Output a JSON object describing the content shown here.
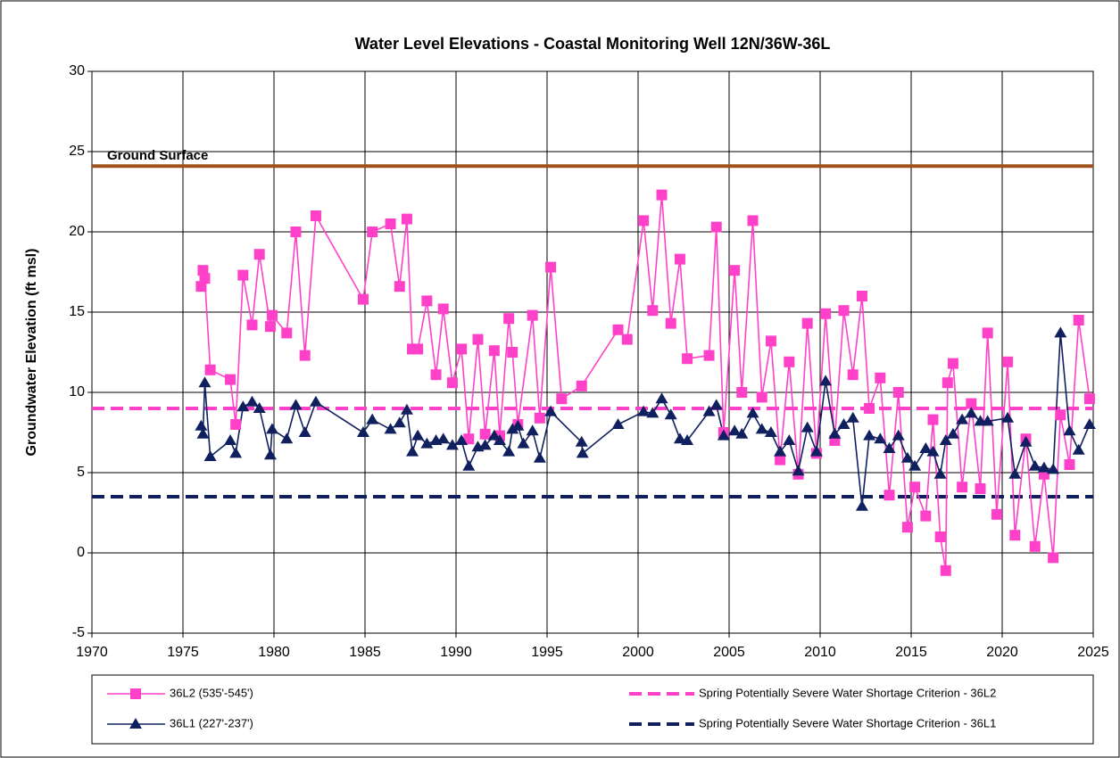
{
  "chart_data": {
    "type": "line",
    "title": "Water Level Elevations - Coastal Monitoring Well 12N/36W-36L",
    "y_label": "Groundwater Elevation (ft msl)",
    "xlim": [
      1970,
      2025
    ],
    "xticks": [
      1970,
      1975,
      1980,
      1985,
      1990,
      1995,
      2000,
      2005,
      2010,
      2015,
      2020,
      2025
    ],
    "ylim": [
      -5,
      30
    ],
    "yticks": [
      -5,
      0,
      5,
      10,
      15,
      20,
      25,
      30
    ],
    "grid": true,
    "legend": "bottom",
    "series": [
      {
        "name": "36L2 (535'-545')",
        "color": "#ff40c8",
        "marker": "square",
        "x": [
          1976.0,
          1976.1,
          1976.2,
          1976.5,
          1977.6,
          1977.9,
          1978.3,
          1978.8,
          1979.2,
          1979.8,
          1979.9,
          1980.7,
          1981.2,
          1981.7,
          1982.3,
          1984.9,
          1985.4,
          1986.4,
          1986.9,
          1987.3,
          1987.6,
          1987.9,
          1988.4,
          1988.9,
          1989.3,
          1989.8,
          1990.3,
          1990.7,
          1991.2,
          1991.6,
          1992.1,
          1992.4,
          1992.9,
          1993.1,
          1993.4,
          1994.2,
          1994.6,
          1995.2,
          1995.8,
          1996.9,
          1998.9,
          1999.4,
          2000.3,
          2000.8,
          2001.3,
          2001.8,
          2002.3,
          2002.7,
          2003.9,
          2004.3,
          2004.7,
          2005.3,
          2005.7,
          2006.3,
          2006.8,
          2007.3,
          2007.8,
          2008.3,
          2008.8,
          2009.3,
          2009.8,
          2010.3,
          2010.8,
          2011.3,
          2011.8,
          2012.3,
          2012.7,
          2013.3,
          2013.8,
          2014.3,
          2014.8,
          2015.2,
          2015.8,
          2016.2,
          2016.6,
          2016.9,
          2017.0,
          2017.3,
          2017.8,
          2018.3,
          2018.8,
          2019.2,
          2019.7,
          2020.3,
          2020.7,
          2021.3,
          2021.8,
          2022.3,
          2022.8,
          2023.2,
          2023.7,
          2024.2,
          2024.8
        ],
        "values": [
          16.6,
          17.6,
          17.1,
          11.4,
          10.8,
          8.0,
          17.3,
          14.2,
          18.6,
          14.1,
          14.8,
          13.7,
          20.0,
          12.3,
          21.0,
          15.8,
          20.0,
          20.5,
          16.6,
          20.8,
          12.7,
          12.7,
          15.7,
          11.1,
          15.2,
          10.6,
          12.7,
          7.1,
          13.3,
          7.4,
          12.6,
          7.3,
          14.6,
          12.5,
          8.0,
          14.8,
          8.4,
          17.8,
          9.6,
          10.4,
          13.9,
          13.3,
          20.7,
          15.1,
          22.3,
          14.3,
          18.3,
          12.1,
          12.3,
          20.3,
          7.5,
          17.6,
          10.0,
          20.7,
          9.7,
          13.2,
          5.8,
          11.9,
          4.9,
          14.3,
          6.2,
          14.9,
          7.0,
          15.1,
          11.1,
          16.0,
          9.0,
          10.9,
          3.6,
          10.0,
          1.6,
          4.1,
          2.3,
          8.3,
          1.0,
          -1.1,
          10.6,
          11.8,
          4.1,
          9.3,
          4.0,
          13.7,
          2.4,
          11.9,
          1.1,
          7.1,
          0.4,
          4.9,
          -0.3,
          8.6,
          5.5,
          14.5,
          9.6
        ]
      },
      {
        "name": "36L1 (227'-237')",
        "color": "#10205f",
        "marker": "triangle",
        "x": [
          1976.0,
          1976.1,
          1976.2,
          1976.5,
          1977.6,
          1977.9,
          1978.3,
          1978.8,
          1979.2,
          1979.8,
          1979.9,
          1980.7,
          1981.2,
          1981.7,
          1982.3,
          1984.9,
          1985.4,
          1986.4,
          1986.9,
          1987.3,
          1987.6,
          1987.9,
          1988.4,
          1988.9,
          1989.3,
          1989.8,
          1990.3,
          1990.7,
          1991.2,
          1991.6,
          1992.1,
          1992.4,
          1992.9,
          1993.1,
          1993.4,
          1993.7,
          1994.2,
          1994.6,
          1995.2,
          1996.9,
          1996.95,
          1998.9,
          2000.3,
          2000.8,
          2001.3,
          2001.8,
          2002.3,
          2002.7,
          2003.9,
          2004.3,
          2004.7,
          2005.3,
          2005.7,
          2006.3,
          2006.8,
          2007.3,
          2007.8,
          2008.3,
          2008.8,
          2009.3,
          2009.8,
          2010.3,
          2010.8,
          2011.3,
          2011.8,
          2012.3,
          2012.7,
          2013.3,
          2013.8,
          2014.3,
          2014.8,
          2015.2,
          2015.8,
          2016.2,
          2016.6,
          2016.9,
          2017.3,
          2017.8,
          2018.3,
          2018.8,
          2019.2,
          2020.3,
          2020.7,
          2021.3,
          2021.8,
          2022.3,
          2022.8,
          2023.2,
          2023.7,
          2024.2,
          2024.8
        ],
        "values": [
          7.9,
          7.4,
          10.6,
          6.0,
          7.0,
          6.2,
          9.1,
          9.4,
          9.0,
          6.1,
          7.7,
          7.1,
          9.2,
          7.5,
          9.4,
          7.5,
          8.3,
          7.7,
          8.1,
          8.9,
          6.3,
          7.3,
          6.8,
          7.0,
          7.1,
          6.7,
          7.0,
          5.4,
          6.6,
          6.7,
          7.3,
          7.0,
          6.3,
          7.7,
          7.9,
          6.8,
          7.6,
          5.9,
          8.8,
          6.9,
          6.2,
          8.0,
          8.8,
          8.7,
          9.6,
          8.6,
          7.1,
          7.0,
          8.8,
          9.2,
          7.3,
          7.6,
          7.4,
          8.7,
          7.7,
          7.5,
          6.3,
          7.0,
          5.1,
          7.8,
          6.3,
          10.7,
          7.4,
          8.0,
          8.4,
          2.9,
          7.3,
          7.1,
          6.5,
          7.3,
          5.9,
          5.4,
          6.5,
          6.3,
          4.9,
          7.0,
          7.4,
          8.3,
          8.7,
          8.2,
          8.2,
          8.4,
          4.9,
          6.9,
          5.4,
          5.3,
          5.2,
          13.7,
          7.6,
          6.4,
          8.0
        ]
      }
    ],
    "reference_lines": [
      {
        "name": "Spring Potentially Severe Water Shortage Criterion - 36L2",
        "value": 9.0,
        "color": "#ff40c8",
        "style": "dashed"
      },
      {
        "name": "Spring Potentially Severe Water Shortage Criterion - 36L1",
        "value": 3.5,
        "color": "#10205f",
        "style": "dashed"
      }
    ],
    "ground_surface": {
      "label": "Ground Surface",
      "value": 24.1,
      "color": "#a0501a"
    }
  }
}
